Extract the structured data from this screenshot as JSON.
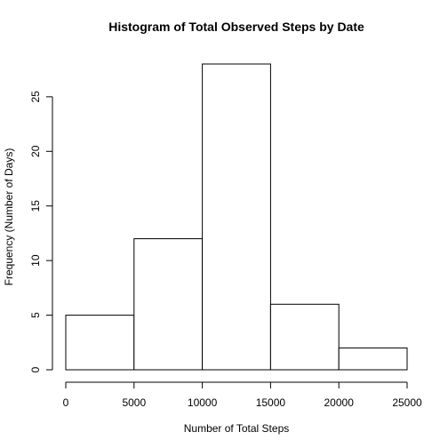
{
  "chart_data": {
    "type": "bar",
    "title": "Histogram of Total Observed Steps by Date",
    "xlabel": "Number of Total Steps",
    "ylabel": "Frequency (Number of Days)",
    "bins": [
      {
        "from": 0,
        "to": 5000,
        "count": 5
      },
      {
        "from": 5000,
        "to": 10000,
        "count": 12
      },
      {
        "from": 10000,
        "to": 15000,
        "count": 28
      },
      {
        "from": 15000,
        "to": 20000,
        "count": 6
      },
      {
        "from": 20000,
        "to": 25000,
        "count": 2
      }
    ],
    "xlim": [
      0,
      25000
    ],
    "ylim": [
      0,
      28
    ],
    "xticks": [
      0,
      5000,
      10000,
      15000,
      20000,
      25000
    ],
    "yticks": [
      0,
      5,
      10,
      15,
      20,
      25
    ],
    "grid": false,
    "bar_fill": "#ffffff",
    "bar_stroke": "#000000"
  }
}
